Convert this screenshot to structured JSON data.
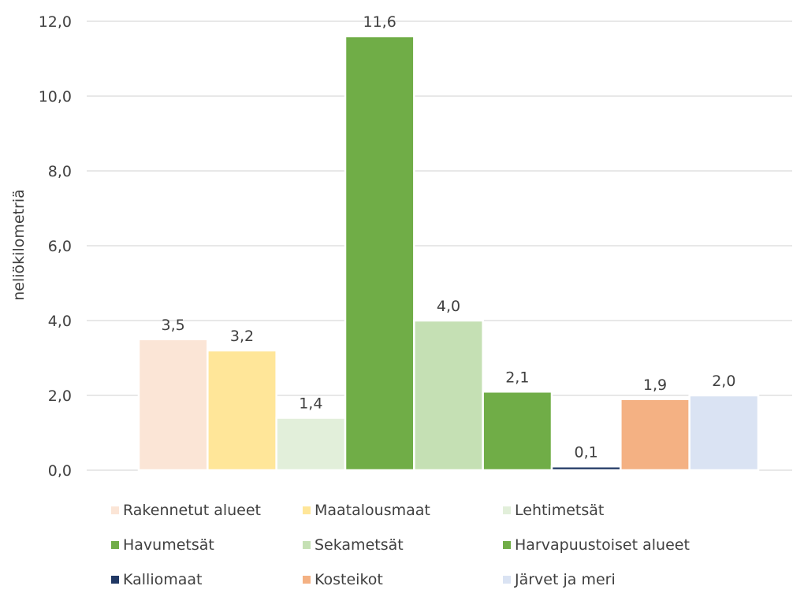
{
  "chart_data": {
    "type": "bar",
    "ylabel": "neliökilometriä",
    "ylim": [
      0,
      12
    ],
    "yticks": [
      "0,0",
      "2,0",
      "4,0",
      "6,0",
      "8,0",
      "10,0",
      "12,0"
    ],
    "grid": true,
    "legend_position": "bottom",
    "series": [
      {
        "name": "Rakennetut alueet",
        "value": 3.5,
        "label": "3,5",
        "color": "#FBE5D6"
      },
      {
        "name": "Maatalousmaat",
        "value": 3.2,
        "label": "3,2",
        "color": "#FFE699"
      },
      {
        "name": "Lehtimetsät",
        "value": 1.4,
        "label": "1,4",
        "color": "#E2EFDA"
      },
      {
        "name": "Havumetsät",
        "value": 11.6,
        "label": "11,6",
        "color": "#70AD47"
      },
      {
        "name": "Sekametsät",
        "value": 4.0,
        "label": "4,0",
        "color": "#C5E0B4"
      },
      {
        "name": "Harvapuustoiset alueet",
        "value": 2.1,
        "label": "2,1",
        "color": "#70AD47"
      },
      {
        "name": "Kalliomaat",
        "value": 0.1,
        "label": "0,1",
        "color": "#203864"
      },
      {
        "name": "Kosteikot",
        "value": 1.9,
        "label": "1,9",
        "color": "#F4B183"
      },
      {
        "name": "Järvet ja meri",
        "value": 2.0,
        "label": "2,0",
        "color": "#DAE3F3"
      }
    ]
  }
}
